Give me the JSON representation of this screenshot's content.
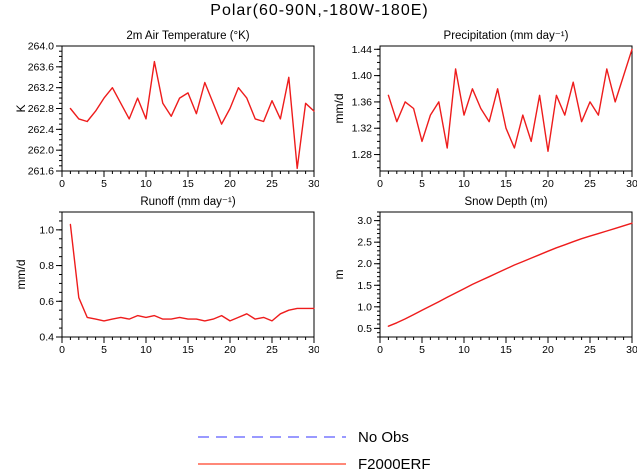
{
  "page": {
    "title": "Polar(60-90N,-180W-180E)",
    "background": "#ffffff"
  },
  "legend": {
    "items": [
      {
        "label": "No Obs",
        "color": "#9999ff",
        "style": "dashed"
      },
      {
        "label": "F2000ERF",
        "color": "#ff8878",
        "style": "solid"
      }
    ]
  },
  "chart_data": [
    {
      "type": "line",
      "title": "2m Air Temperature (°K)",
      "ylabel": "K",
      "xlim": [
        0,
        30
      ],
      "ylim": [
        261.6,
        264.0
      ],
      "x_ticks": [
        0,
        5,
        10,
        15,
        20,
        25,
        30
      ],
      "x_minor_step": 1,
      "y_ticks": [
        261.6,
        262.0,
        262.4,
        262.8,
        263.2,
        263.6,
        264.0
      ],
      "y_tick_labels": [
        "261.6",
        "262.0",
        "262.4",
        "262.8",
        "263.2",
        "263.6",
        "264.0"
      ],
      "y_minor_step": 0.1,
      "line_color": "#ee1c1c",
      "x": [
        1,
        2,
        3,
        4,
        5,
        6,
        7,
        8,
        9,
        10,
        11,
        12,
        13,
        14,
        15,
        16,
        17,
        18,
        19,
        20,
        21,
        22,
        23,
        24,
        25,
        26,
        27,
        28,
        29,
        30
      ],
      "values": [
        262.8,
        262.6,
        262.55,
        262.75,
        263.0,
        263.2,
        262.9,
        262.6,
        263.0,
        262.6,
        263.7,
        262.9,
        262.65,
        263.0,
        263.1,
        262.7,
        263.3,
        262.9,
        262.5,
        262.8,
        263.2,
        263.0,
        262.6,
        262.55,
        262.95,
        262.6,
        263.4,
        261.65,
        262.9,
        262.75
      ]
    },
    {
      "type": "line",
      "title": "Precipitation (mm day⁻¹)",
      "ylabel": "mm/d",
      "xlim": [
        0,
        30
      ],
      "ylim": [
        1.255,
        1.445
      ],
      "x_ticks": [
        0,
        5,
        10,
        15,
        20,
        25,
        30
      ],
      "x_minor_step": 1,
      "y_ticks": [
        1.28,
        1.32,
        1.36,
        1.4,
        1.44
      ],
      "y_tick_labels": [
        "1.28",
        "1.32",
        "1.36",
        "1.40",
        "1.44"
      ],
      "y_minor_step": 0.01,
      "line_color": "#ee1c1c",
      "x": [
        1,
        2,
        3,
        4,
        5,
        6,
        7,
        8,
        9,
        10,
        11,
        12,
        13,
        14,
        15,
        16,
        17,
        18,
        19,
        20,
        21,
        22,
        23,
        24,
        25,
        26,
        27,
        28,
        29,
        30
      ],
      "values": [
        1.37,
        1.33,
        1.36,
        1.35,
        1.3,
        1.34,
        1.36,
        1.29,
        1.41,
        1.34,
        1.38,
        1.35,
        1.33,
        1.38,
        1.32,
        1.29,
        1.34,
        1.3,
        1.37,
        1.285,
        1.37,
        1.34,
        1.39,
        1.33,
        1.36,
        1.34,
        1.41,
        1.36,
        1.4,
        1.44
      ]
    },
    {
      "type": "line",
      "title": "Runoff (mm day⁻¹)",
      "ylabel": "mm/d",
      "xlim": [
        0,
        30
      ],
      "ylim": [
        0.4,
        1.1
      ],
      "x_ticks": [
        0,
        5,
        10,
        15,
        20,
        25,
        30
      ],
      "x_minor_step": 1,
      "y_ticks": [
        0.4,
        0.6,
        0.8,
        1.0
      ],
      "y_tick_labels": [
        "0.4",
        "0.6",
        "0.8",
        "1.0"
      ],
      "y_minor_step": 0.05,
      "line_color": "#ee1c1c",
      "x": [
        1,
        2,
        3,
        4,
        5,
        6,
        7,
        8,
        9,
        10,
        11,
        12,
        13,
        14,
        15,
        16,
        17,
        18,
        19,
        20,
        21,
        22,
        23,
        24,
        25,
        26,
        27,
        28,
        29,
        30
      ],
      "values": [
        1.03,
        0.62,
        0.51,
        0.5,
        0.49,
        0.5,
        0.51,
        0.5,
        0.52,
        0.51,
        0.52,
        0.5,
        0.5,
        0.51,
        0.5,
        0.5,
        0.49,
        0.5,
        0.52,
        0.49,
        0.51,
        0.53,
        0.5,
        0.51,
        0.49,
        0.53,
        0.55,
        0.56,
        0.56,
        0.56
      ]
    },
    {
      "type": "line",
      "title": "Snow Depth (m)",
      "ylabel": "m",
      "xlim": [
        0,
        30
      ],
      "ylim": [
        0.3,
        3.2
      ],
      "x_ticks": [
        0,
        5,
        10,
        15,
        20,
        25,
        30
      ],
      "x_minor_step": 1,
      "y_ticks": [
        0.5,
        1.0,
        1.5,
        2.0,
        2.5,
        3.0
      ],
      "y_tick_labels": [
        "0.5",
        "1.0",
        "1.5",
        "2.0",
        "2.5",
        "3.0"
      ],
      "y_minor_step": 0.1,
      "line_color": "#ee1c1c",
      "x": [
        1,
        2,
        3,
        4,
        5,
        6,
        7,
        8,
        9,
        10,
        11,
        12,
        13,
        14,
        15,
        16,
        17,
        18,
        19,
        20,
        21,
        22,
        23,
        24,
        25,
        26,
        27,
        28,
        29,
        30
      ],
      "values": [
        0.55,
        0.63,
        0.72,
        0.82,
        0.92,
        1.02,
        1.12,
        1.22,
        1.32,
        1.42,
        1.52,
        1.61,
        1.7,
        1.79,
        1.88,
        1.97,
        2.05,
        2.13,
        2.21,
        2.29,
        2.37,
        2.44,
        2.51,
        2.58,
        2.64,
        2.7,
        2.76,
        2.82,
        2.88,
        2.94
      ]
    }
  ]
}
